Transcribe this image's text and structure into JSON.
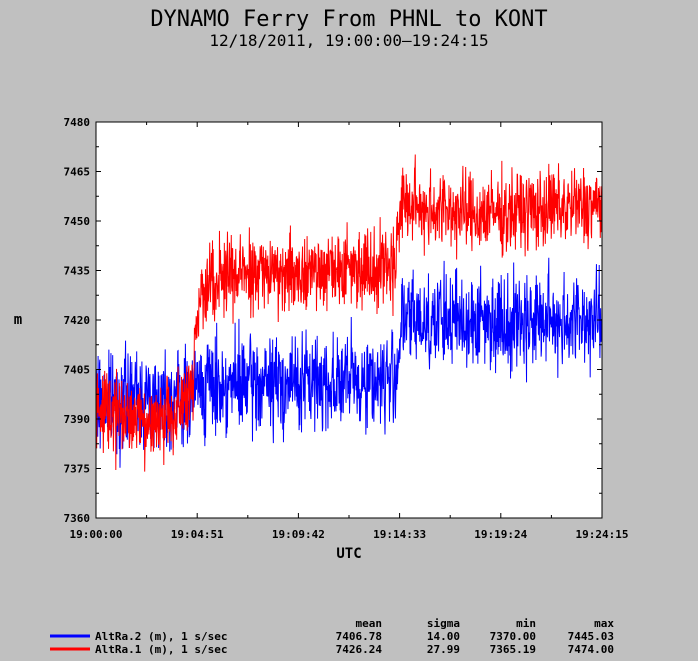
{
  "chart_data": {
    "type": "line",
    "title": "DYNAMO Ferry From PHNL to KONT",
    "subtitle": "12/18/2011, 19:00:00–19:24:15",
    "xlabel": "UTC",
    "ylabel": "m",
    "x_ticks": [
      "19:00:00",
      "19:04:51",
      "19:09:42",
      "19:14:33",
      "19:19:24",
      "19:24:15"
    ],
    "x_tick_seconds": [
      0,
      291,
      582,
      873,
      1164,
      1455
    ],
    "xlim": [
      0,
      1455
    ],
    "y_ticks": [
      7360,
      7375,
      7390,
      7405,
      7420,
      7435,
      7450,
      7465,
      7480
    ],
    "ylim": [
      7360,
      7480
    ],
    "grid": false,
    "stats_headers": [
      "mean",
      "sigma",
      "min",
      "max"
    ],
    "series": [
      {
        "name": "AltRa.2 (m), 1 s/sec",
        "color": "#0000ff",
        "stats": [
          "7406.78",
          "14.00",
          "7370.00",
          "7445.03"
        ],
        "trend": [
          [
            0,
            7395
          ],
          [
            280,
            7397
          ],
          [
            285,
            7400
          ],
          [
            860,
            7402
          ],
          [
            880,
            7420
          ],
          [
            1455,
            7420
          ]
        ],
        "noise": 12
      },
      {
        "name": "AltRa.1 (m), 1 s/sec",
        "color": "#ff0000",
        "stats": [
          "7426.24",
          "27.99",
          "7365.19",
          "7474.00"
        ],
        "trend": [
          [
            0,
            7392
          ],
          [
            120,
            7390
          ],
          [
            250,
            7392
          ],
          [
            280,
            7397
          ],
          [
            285,
            7420
          ],
          [
            320,
            7433
          ],
          [
            600,
            7435
          ],
          [
            860,
            7437
          ],
          [
            875,
            7455
          ],
          [
            1100,
            7452
          ],
          [
            1455,
            7455
          ]
        ],
        "noise": 10
      }
    ]
  }
}
